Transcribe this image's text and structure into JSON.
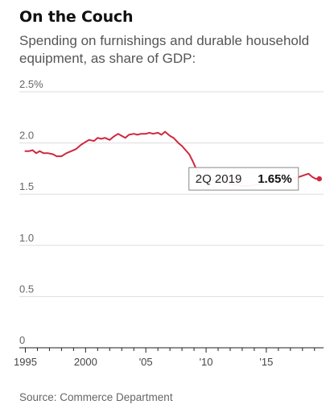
{
  "chart_data": {
    "type": "line",
    "title": "On the Couch",
    "subtitle": "Spending on furnishings and durable household equipment, as share of GDP:",
    "source": "Source: Commerce Department",
    "ylim": [
      0,
      2.5
    ],
    "xlim": [
      1994.5,
      2019.75
    ],
    "y_ticks": [
      {
        "value": 2.5,
        "label": "2.5%"
      },
      {
        "value": 2.0,
        "label": "2.0"
      },
      {
        "value": 1.5,
        "label": "1.5"
      },
      {
        "value": 1.0,
        "label": "1.0"
      },
      {
        "value": 0.5,
        "label": "0.5"
      },
      {
        "value": 0,
        "label": "0"
      }
    ],
    "x_ticks": [
      {
        "value": 1995,
        "label": "1995"
      },
      {
        "value": 2000,
        "label": "2000"
      },
      {
        "value": 2005,
        "label": "'05"
      },
      {
        "value": 2010,
        "label": "'10"
      },
      {
        "value": 2015,
        "label": "'15"
      }
    ],
    "grid": true,
    "line_color": "#d0283e",
    "series": [
      {
        "x": [
          1995.0,
          1995.3,
          1995.6,
          1995.9,
          1996.2,
          1996.5,
          1996.9,
          1997.3,
          1997.6,
          1998.0,
          1998.4,
          1998.8,
          1999.2,
          1999.6,
          2000.0,
          2000.3,
          2000.7,
          2001.0,
          2001.3,
          2001.6,
          2002.0,
          2002.3,
          2002.7,
          2003.0,
          2003.3,
          2003.6,
          2004.0,
          2004.3,
          2004.6,
          2005.0,
          2005.3,
          2005.6,
          2006.0,
          2006.3,
          2006.6,
          2007.0,
          2007.3,
          2007.7,
          2008.0,
          2008.3,
          2008.6,
          2008.9,
          2009.2,
          2009.5,
          2009.8,
          2010.2,
          2010.6,
          2011.0,
          2011.5,
          2012.0,
          2012.5,
          2013.0,
          2013.5,
          2014.0,
          2014.5,
          2015.0,
          2015.5,
          2016.0,
          2016.5,
          2017.0,
          2017.5,
          2018.0,
          2018.5,
          2018.8,
          2019.1,
          2019.4
        ],
        "values": [
          1.92,
          1.92,
          1.93,
          1.9,
          1.92,
          1.9,
          1.9,
          1.89,
          1.87,
          1.87,
          1.9,
          1.92,
          1.94,
          1.98,
          2.01,
          2.03,
          2.02,
          2.05,
          2.04,
          2.05,
          2.03,
          2.06,
          2.09,
          2.07,
          2.05,
          2.08,
          2.09,
          2.08,
          2.09,
          2.09,
          2.1,
          2.09,
          2.1,
          2.08,
          2.11,
          2.07,
          2.05,
          2.0,
          1.97,
          1.93,
          1.89,
          1.82,
          1.74,
          1.68,
          1.66,
          1.65,
          1.64,
          1.63,
          1.62,
          1.6,
          1.59,
          1.58,
          1.58,
          1.59,
          1.6,
          1.61,
          1.62,
          1.62,
          1.63,
          1.64,
          1.66,
          1.68,
          1.7,
          1.67,
          1.65,
          1.65
        ]
      }
    ],
    "annotation": {
      "period": "2Q 2019",
      "value": "1.65%",
      "x": 2019.4,
      "y": 1.65
    }
  }
}
